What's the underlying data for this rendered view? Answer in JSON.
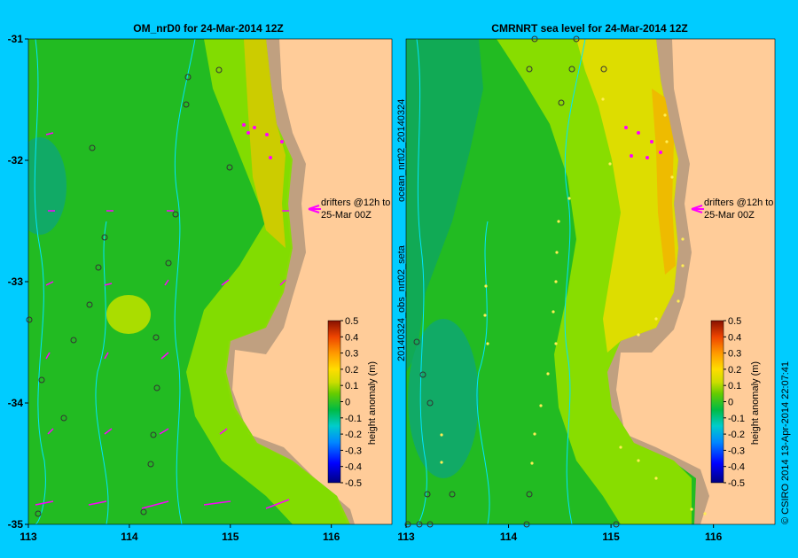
{
  "chart_data": [
    {
      "type": "heatmap",
      "title": "OM_nrD0 for 24-Mar-2014 12Z",
      "x_ticks": [
        "113",
        "114",
        "115",
        "116"
      ],
      "y_ticks": [
        "-31",
        "-32",
        "-33",
        "-34",
        "-35"
      ],
      "xlim": [
        113,
        116.6
      ],
      "ylim": [
        -35,
        -31
      ],
      "annotation": "drifters @12h to",
      "annotation2": "25-Mar 00Z",
      "colorbar": {
        "label": "height anomaly (m)",
        "ticks": [
          "0.5",
          "0.4",
          "0.3",
          "0.2",
          "0.1",
          "0",
          "-0.1",
          "-0.2",
          "-0.3",
          "-0.4",
          "-0.5"
        ],
        "range": [
          -0.5,
          0.5
        ]
      },
      "colors": {
        "land": "#ffcc99",
        "shelf": "#c0a080",
        "green": "#22bb22",
        "light_green": "#88dd00",
        "yellow": "#dddd00",
        "arrows": "#ff00ff"
      }
    },
    {
      "type": "heatmap",
      "title": "CMRNRT sea level  for 24-Mar-2014 12Z",
      "x_ticks": [
        "113",
        "114",
        "115",
        "116"
      ],
      "xlim": [
        113,
        116.6
      ],
      "ylim": [
        -35,
        -31
      ],
      "side_label_top": "ocean_nrt02_20140324",
      "side_label_bottom": "20140324_obs_nrt02_seta",
      "annotation": "drifters @12h to",
      "annotation2": "25-Mar 00Z",
      "colorbar": {
        "label": "height anomaly (m)",
        "ticks": [
          "0.5",
          "0.4",
          "0.3",
          "0.2",
          "0.1",
          "0",
          "-0.1",
          "-0.2",
          "-0.3",
          "-0.4",
          "-0.5"
        ],
        "range": [
          -0.5,
          0.5
        ]
      }
    }
  ],
  "footer": {
    "credit": "© CSIRO 2014",
    "timestamp": "13-Apr-2014 22:07:41"
  }
}
